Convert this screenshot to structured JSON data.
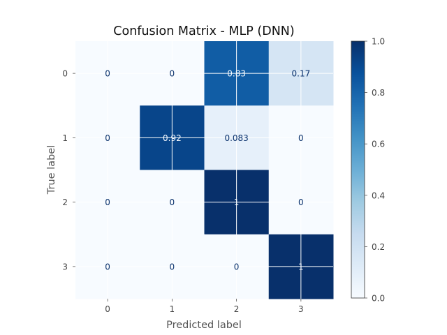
{
  "chart_data": {
    "type": "heatmap",
    "title": "Confusion Matrix - MLP (DNN)",
    "xlabel": "Predicted label",
    "ylabel": "True label",
    "x_categories": [
      "0",
      "1",
      "2",
      "3"
    ],
    "y_categories": [
      "0",
      "1",
      "2",
      "3"
    ],
    "values": [
      [
        0,
        0,
        0.83,
        0.17
      ],
      [
        0,
        0.92,
        0.083,
        0
      ],
      [
        0,
        0,
        1,
        0
      ],
      [
        0,
        0,
        0,
        1
      ]
    ],
    "cell_labels": [
      [
        "0",
        "0",
        "0.83",
        "0.17"
      ],
      [
        "0",
        "0.92",
        "0.083",
        "0"
      ],
      [
        "0",
        "0",
        "1",
        "0"
      ],
      [
        "0",
        "0",
        "0",
        "1"
      ]
    ],
    "colormap": "Blues",
    "colormap_stops": [
      "#f7fbff",
      "#deebf7",
      "#c6dbef",
      "#9ecae1",
      "#6baed6",
      "#4292c6",
      "#2171b5",
      "#08519c",
      "#08306b"
    ],
    "colorbar": {
      "range": [
        0.0,
        1.0
      ],
      "ticks": [
        "0.0",
        "0.2",
        "0.4",
        "0.6",
        "0.8",
        "1.0"
      ]
    },
    "grid": true
  }
}
